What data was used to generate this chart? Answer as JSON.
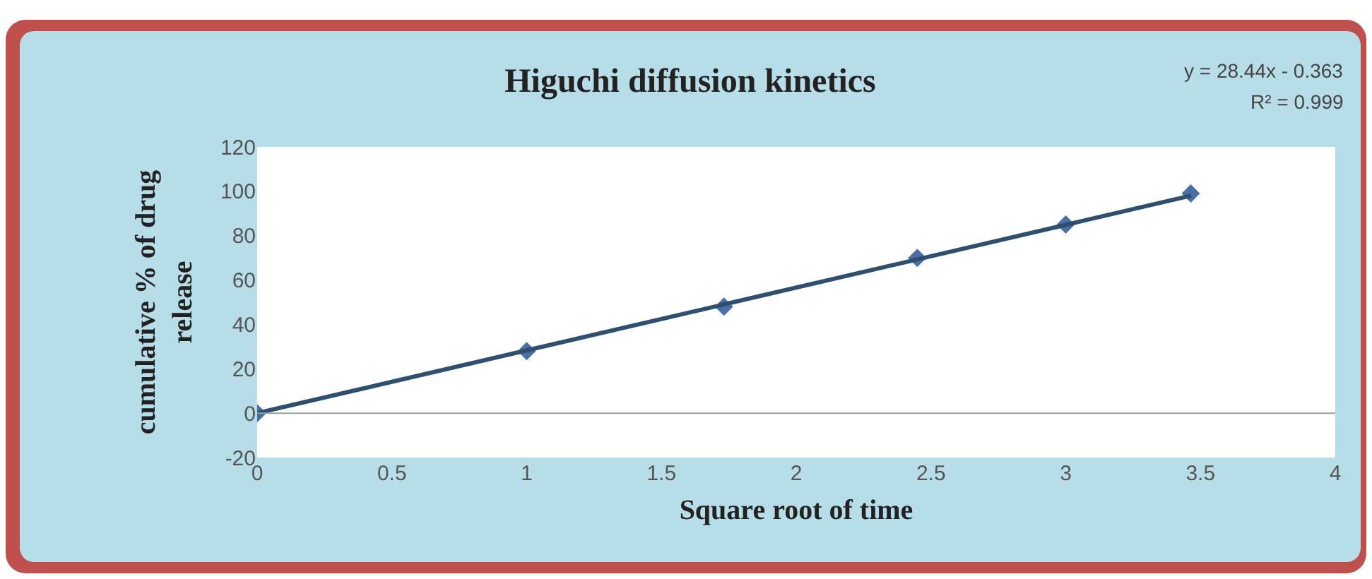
{
  "chart_data": {
    "type": "scatter",
    "title": "Higuchi diffusion kinetics",
    "xlabel": "Square root of time",
    "ylabel": "cumulative % of drug release",
    "annotations": [
      "y = 28.44x - 0.363",
      "R² = 0.999"
    ],
    "series": [
      {
        "color": "#4a6fa5",
        "marker": "diamond",
        "x": [
          0,
          1,
          1.732,
          2.449,
          3,
          3.464
        ],
        "values": [
          0,
          28,
          48,
          70,
          85,
          99
        ]
      },
      {
        "type": "line",
        "color": "#2f4f6f",
        "marker": "none",
        "x": [
          0,
          3.464
        ],
        "values": [
          0,
          98
        ]
      }
    ],
    "ref_lines": [
      {
        "axis": "y",
        "value": 0,
        "color": "#a0a0a0"
      }
    ],
    "xlim": [
      0,
      4
    ],
    "xticks": [
      0,
      0.5,
      1,
      1.5,
      2,
      2.5,
      3,
      3.5,
      4
    ],
    "ylim": [
      -20,
      120
    ],
    "yticks": [
      -20,
      0,
      20,
      40,
      60,
      80,
      100,
      120
    ],
    "grid": false
  }
}
